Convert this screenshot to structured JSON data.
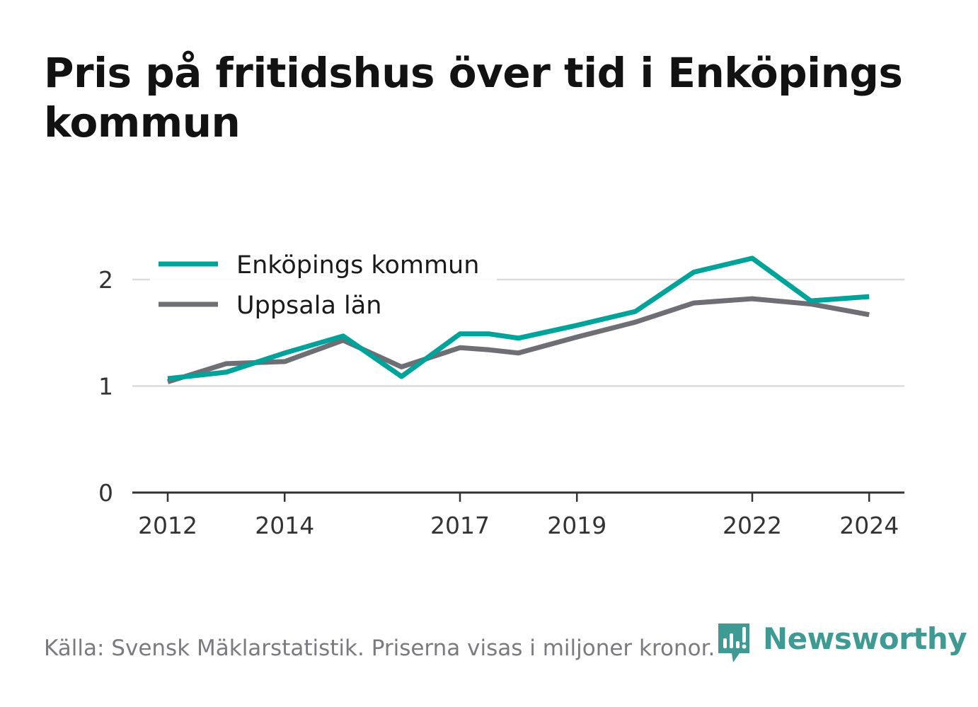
{
  "title": "Pris på fritidshus över tid i Enköpings kommun",
  "source": "Källa: Svensk Mäklarstatistik. Priserna visas i miljoner kronor.",
  "brand": {
    "name": "Newsworthy",
    "icon": "newsworthy-logo-icon",
    "color": "#3f9a93"
  },
  "chart_data": {
    "type": "line",
    "title": "Pris på fritidshus över tid i Enköpings kommun",
    "xlabel": "",
    "ylabel": "",
    "x": [
      2012,
      2013,
      2014,
      2015,
      2016,
      2017,
      2017.5,
      2018,
      2019,
      2020,
      2021,
      2022,
      2023,
      2024
    ],
    "x_ticks": [
      "2012",
      "2014",
      "2017",
      "2019",
      "2022",
      "2024"
    ],
    "y_ticks": [
      "0",
      "1",
      "2"
    ],
    "ylim": [
      0,
      2
    ],
    "grid": true,
    "legend_position": "top-left",
    "series": [
      {
        "name": "Enköpings kommun",
        "color": "#00a39a",
        "values": [
          1.07,
          1.13,
          1.31,
          1.47,
          1.09,
          1.49,
          1.49,
          1.45,
          1.57,
          1.7,
          2.07,
          2.2,
          1.8,
          1.84
        ]
      },
      {
        "name": "Uppsala län",
        "color": "#6e6e75",
        "values": [
          1.04,
          1.21,
          1.23,
          1.43,
          1.18,
          1.36,
          1.34,
          1.31,
          1.46,
          1.6,
          1.78,
          1.82,
          1.77,
          1.67
        ]
      }
    ]
  }
}
